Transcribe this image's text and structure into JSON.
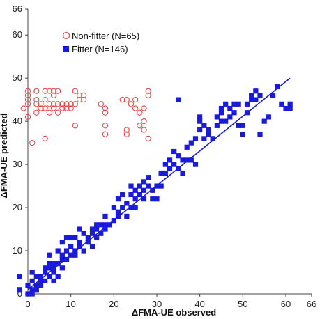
{
  "chart_data": {
    "type": "scatter",
    "title": "",
    "xlabel": "ΔFMA-UE observed",
    "ylabel": "ΔFMA-UE predicted",
    "xlim": [
      0,
      66
    ],
    "ylim": [
      0,
      66
    ],
    "x_ticks": [
      0,
      10,
      20,
      30,
      40,
      50,
      60,
      66
    ],
    "y_ticks": [
      0,
      10,
      20,
      30,
      40,
      50,
      60,
      66
    ],
    "grid": false,
    "legend_position": "top-left",
    "series": [
      {
        "name": "Non-fitter (N=65)",
        "marker": "open-circle",
        "color": "#e8474b",
        "points": [
          [
            -1,
            43
          ],
          [
            0,
            44
          ],
          [
            0,
            45
          ],
          [
            0,
            46
          ],
          [
            0,
            47
          ],
          [
            0,
            41
          ],
          [
            1,
            35
          ],
          [
            2,
            44
          ],
          [
            2,
            45
          ],
          [
            2,
            47
          ],
          [
            2,
            42
          ],
          [
            3,
            43
          ],
          [
            3,
            44
          ],
          [
            4,
            43
          ],
          [
            4,
            45
          ],
          [
            4,
            47
          ],
          [
            4,
            36
          ],
          [
            5,
            44
          ],
          [
            5,
            47
          ],
          [
            5,
            42
          ],
          [
            6,
            44
          ],
          [
            6,
            46
          ],
          [
            6,
            47
          ],
          [
            6,
            43
          ],
          [
            7,
            44
          ],
          [
            7,
            47
          ],
          [
            7,
            42
          ],
          [
            8,
            44
          ],
          [
            8,
            43
          ],
          [
            9,
            44
          ],
          [
            9,
            43
          ],
          [
            10,
            44
          ],
          [
            10,
            43
          ],
          [
            11,
            44
          ],
          [
            11,
            47
          ],
          [
            11,
            39
          ],
          [
            12,
            46
          ],
          [
            12,
            45
          ],
          [
            13,
            45
          ],
          [
            13,
            46
          ],
          [
            17,
            44
          ],
          [
            18,
            43
          ],
          [
            18,
            42
          ],
          [
            18,
            39
          ],
          [
            18,
            37
          ],
          [
            22,
            45
          ],
          [
            23,
            45
          ],
          [
            23,
            38
          ],
          [
            23,
            37
          ],
          [
            24,
            44
          ],
          [
            25,
            43
          ],
          [
            25,
            45
          ],
          [
            26,
            39
          ],
          [
            26,
            42
          ],
          [
            27,
            43
          ],
          [
            27,
            40
          ],
          [
            27,
            38
          ],
          [
            28,
            46
          ],
          [
            28,
            47
          ],
          [
            28,
            36
          ]
        ]
      },
      {
        "name": "Fitter (N=146)",
        "marker": "filled-square",
        "color": "#1a1adb",
        "points": [
          [
            -2,
            4
          ],
          [
            -2,
            1
          ],
          [
            0,
            0
          ],
          [
            0,
            2
          ],
          [
            1,
            0
          ],
          [
            1,
            1
          ],
          [
            1,
            3
          ],
          [
            1,
            5
          ],
          [
            2,
            2
          ],
          [
            2,
            1
          ],
          [
            2,
            4
          ],
          [
            3,
            3
          ],
          [
            3,
            4
          ],
          [
            3,
            2
          ],
          [
            4,
            6
          ],
          [
            4,
            5
          ],
          [
            4,
            3
          ],
          [
            5,
            4
          ],
          [
            5,
            7
          ],
          [
            5,
            9
          ],
          [
            5,
            6
          ],
          [
            6,
            6
          ],
          [
            6,
            7
          ],
          [
            6,
            3
          ],
          [
            6,
            5
          ],
          [
            7,
            7
          ],
          [
            7,
            10
          ],
          [
            7,
            4
          ],
          [
            8,
            8
          ],
          [
            8,
            6
          ],
          [
            8,
            9
          ],
          [
            8,
            12
          ],
          [
            9,
            8
          ],
          [
            9,
            10
          ],
          [
            9,
            13
          ],
          [
            10,
            9
          ],
          [
            10,
            11
          ],
          [
            10,
            13
          ],
          [
            11,
            13
          ],
          [
            11,
            10
          ],
          [
            11,
            9
          ],
          [
            12,
            12
          ],
          [
            12,
            11
          ],
          [
            12,
            15
          ],
          [
            13,
            10
          ],
          [
            13,
            14
          ],
          [
            14,
            12
          ],
          [
            14,
            13
          ],
          [
            15,
            15
          ],
          [
            15,
            14
          ],
          [
            15,
            11
          ],
          [
            16,
            16
          ],
          [
            16,
            15
          ],
          [
            16,
            13
          ],
          [
            17,
            14
          ],
          [
            17,
            16
          ],
          [
            18,
            16
          ],
          [
            18,
            18
          ],
          [
            18,
            15
          ],
          [
            19,
            16
          ],
          [
            20,
            20
          ],
          [
            20,
            17
          ],
          [
            21,
            19
          ],
          [
            21,
            22
          ],
          [
            21,
            18
          ],
          [
            22,
            20
          ],
          [
            22,
            23
          ],
          [
            23,
            21
          ],
          [
            23,
            18
          ],
          [
            24,
            20
          ],
          [
            24,
            23
          ],
          [
            24,
            25
          ],
          [
            25,
            22
          ],
          [
            25,
            24
          ],
          [
            25,
            20
          ],
          [
            26,
            23
          ],
          [
            26,
            25
          ],
          [
            27,
            24
          ],
          [
            27,
            26
          ],
          [
            27,
            22
          ],
          [
            28,
            25
          ],
          [
            28,
            27
          ],
          [
            29,
            24
          ],
          [
            29,
            22
          ],
          [
            30,
            25
          ],
          [
            30,
            22
          ],
          [
            31,
            25
          ],
          [
            31,
            28
          ],
          [
            32,
            30
          ],
          [
            32,
            28
          ],
          [
            33,
            29
          ],
          [
            33,
            31
          ],
          [
            34,
            30
          ],
          [
            34,
            33
          ],
          [
            35,
            32
          ],
          [
            35,
            29
          ],
          [
            36,
            31
          ],
          [
            36,
            28
          ],
          [
            37,
            34
          ],
          [
            37,
            31
          ],
          [
            38,
            31
          ],
          [
            38,
            35
          ],
          [
            39,
            36
          ],
          [
            39,
            30
          ],
          [
            40,
            38
          ],
          [
            40,
            40
          ],
          [
            40,
            41
          ],
          [
            41,
            36
          ],
          [
            41,
            39
          ],
          [
            42,
            37
          ],
          [
            42,
            38
          ],
          [
            43,
            36
          ],
          [
            44,
            39
          ],
          [
            44,
            41
          ],
          [
            45,
            40
          ],
          [
            45,
            42
          ],
          [
            45,
            43
          ],
          [
            46,
            44
          ],
          [
            46,
            40
          ],
          [
            47,
            41
          ],
          [
            47,
            43
          ],
          [
            48,
            44
          ],
          [
            48,
            42
          ],
          [
            49,
            44
          ],
          [
            49,
            39
          ],
          [
            50,
            39
          ],
          [
            50,
            37
          ],
          [
            51,
            44
          ],
          [
            51,
            42
          ],
          [
            52,
            45
          ],
          [
            52,
            46
          ],
          [
            53,
            45
          ],
          [
            53,
            47
          ],
          [
            54,
            46
          ],
          [
            54,
            37
          ],
          [
            55,
            40
          ],
          [
            56,
            41
          ],
          [
            57,
            46
          ],
          [
            58,
            48
          ],
          [
            59,
            44
          ],
          [
            60,
            43
          ],
          [
            61,
            43
          ],
          [
            61,
            44
          ],
          [
            35,
            45
          ]
        ]
      }
    ],
    "fit_line": {
      "color": "#1a1adb",
      "points": [
        [
          0,
          1
        ],
        [
          61,
          50
        ]
      ]
    }
  }
}
